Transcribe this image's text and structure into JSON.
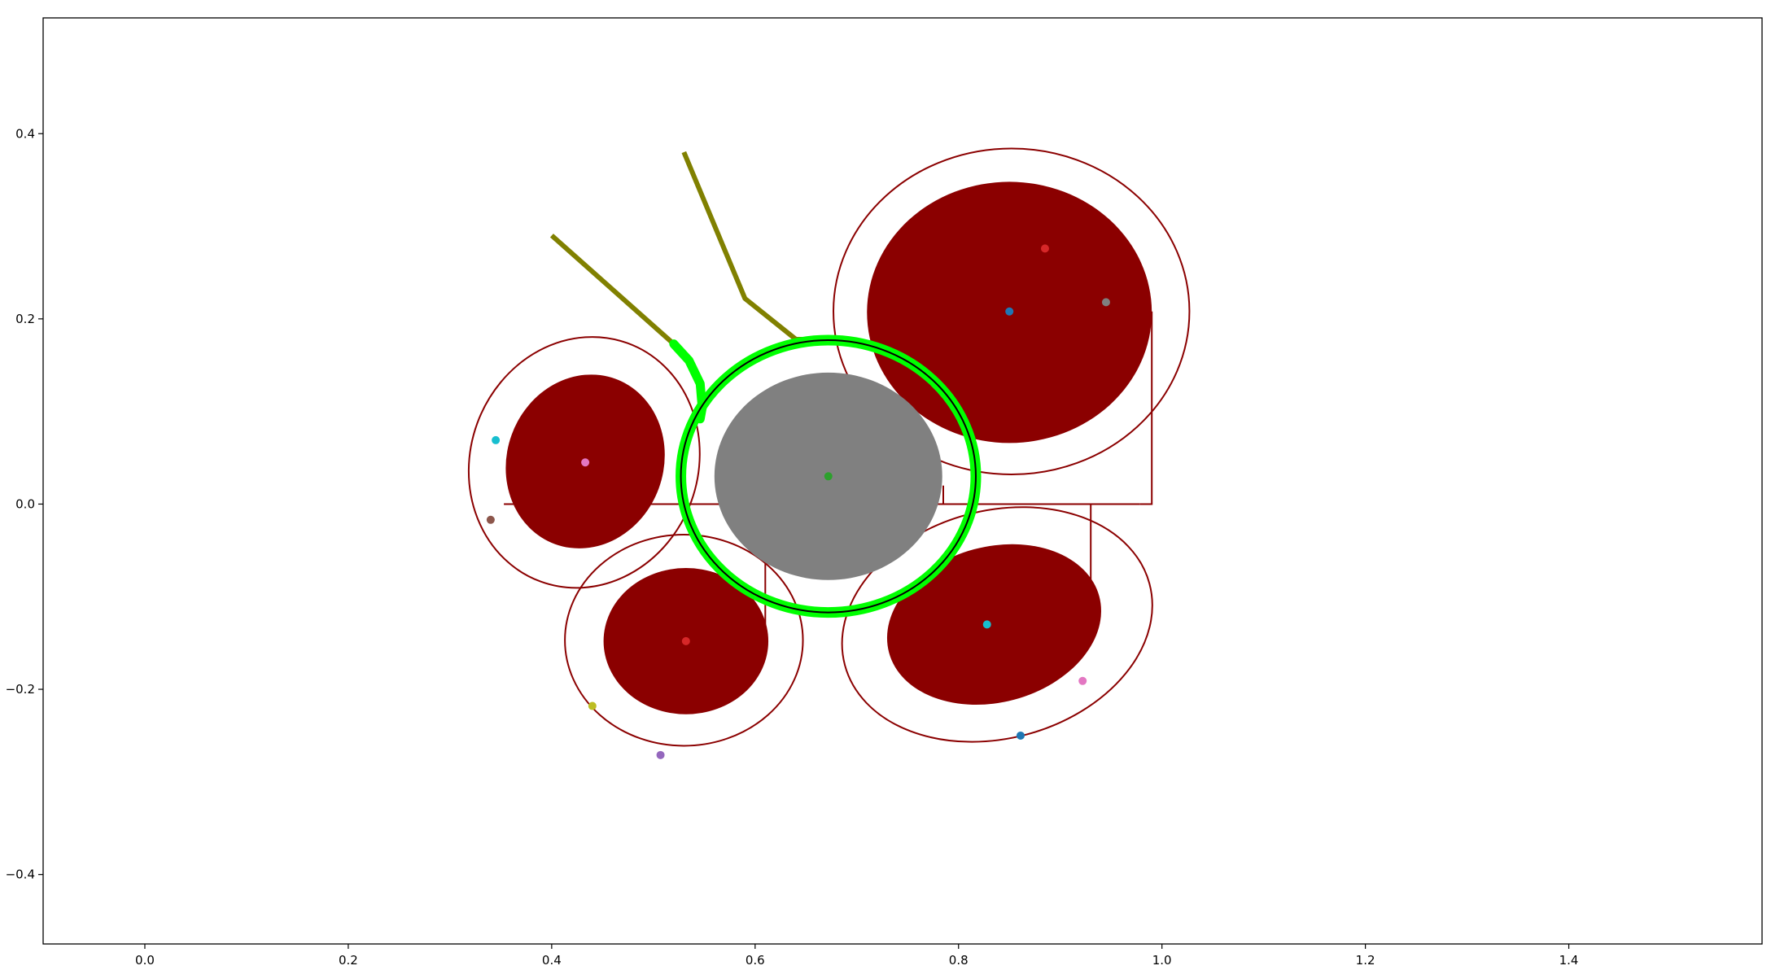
{
  "chart_data": {
    "type": "scatter",
    "title": "",
    "xlabel": "",
    "ylabel": "",
    "xlim": [
      -0.1,
      1.59
    ],
    "ylim": [
      -0.475,
      0.525
    ],
    "grid": false,
    "legend": "none",
    "x_ticks": [
      {
        "value": 0.0,
        "label": "0.0"
      },
      {
        "value": 0.2,
        "label": "0.2"
      },
      {
        "value": 0.4,
        "label": "0.4"
      },
      {
        "value": 0.6,
        "label": "0.6"
      },
      {
        "value": 0.8,
        "label": "0.8"
      },
      {
        "value": 1.0,
        "label": "1.0"
      },
      {
        "value": 1.2,
        "label": "1.2"
      },
      {
        "value": 1.4,
        "label": "1.4"
      }
    ],
    "y_ticks": [
      {
        "value": 0.4,
        "label": "0.4"
      },
      {
        "value": 0.2,
        "label": "0.2"
      },
      {
        "value": 0.0,
        "label": "0.0"
      },
      {
        "value": -0.2,
        "label": "−0.2"
      },
      {
        "value": -0.4,
        "label": "−0.4"
      }
    ],
    "colors": {
      "obstacle": "#8b0000",
      "center_object": "#808080",
      "highlight_ring": "#00ff00",
      "path": "#808000",
      "outline": "#000000"
    },
    "filled_ellipses": [
      {
        "name": "obstacle-top-right",
        "cx": 0.85,
        "cy": 0.207,
        "rx": 0.14,
        "ry": 0.141,
        "angle": 0,
        "color": "#8b0000"
      },
      {
        "name": "obstacle-left",
        "cx": 0.433,
        "cy": 0.046,
        "rx": 0.077,
        "ry": 0.095,
        "angle": -20,
        "color": "#8b0000"
      },
      {
        "name": "obstacle-bottom-left",
        "cx": 0.532,
        "cy": -0.148,
        "rx": 0.081,
        "ry": 0.079,
        "angle": 0,
        "color": "#8b0000"
      },
      {
        "name": "obstacle-bottom-right",
        "cx": 0.835,
        "cy": -0.13,
        "rx": 0.107,
        "ry": 0.084,
        "angle": 15,
        "color": "#8b0000"
      },
      {
        "name": "center-object",
        "cx": 0.672,
        "cy": 0.03,
        "rx": 0.112,
        "ry": 0.112,
        "angle": 0,
        "color": "#808080"
      }
    ],
    "outline_ellipses": [
      {
        "name": "halo-top-right",
        "cx": 0.852,
        "cy": 0.208,
        "rx": 0.175,
        "ry": 0.176,
        "angle": 0,
        "color": "#8b0000"
      },
      {
        "name": "halo-left",
        "cx": 0.432,
        "cy": 0.045,
        "rx": 0.112,
        "ry": 0.137,
        "angle": -20,
        "color": "#8b0000"
      },
      {
        "name": "halo-bottom-left",
        "cx": 0.53,
        "cy": -0.147,
        "rx": 0.117,
        "ry": 0.114,
        "angle": 0,
        "color": "#8b0000"
      },
      {
        "name": "halo-bottom-right",
        "cx": 0.838,
        "cy": -0.13,
        "rx": 0.155,
        "ry": 0.123,
        "angle": 15,
        "color": "#8b0000"
      }
    ],
    "base_lines": [
      {
        "name": "base-line-center",
        "points": [
          [
            0.353,
            0.0
          ],
          [
            0.978,
            0.0
          ]
        ],
        "color": "#8b0000"
      },
      {
        "name": "base-line-right",
        "points": [
          [
            0.978,
            0.0
          ],
          [
            0.99,
            0.0
          ],
          [
            0.99,
            0.208
          ]
        ],
        "color": "#8b0000"
      },
      {
        "name": "base-line-bottom-right",
        "points": [
          [
            0.93,
            0.0
          ],
          [
            0.93,
            -0.115
          ]
        ],
        "color": "#8b0000"
      },
      {
        "name": "base-line-bottom-left",
        "points": [
          [
            0.61,
            0.0
          ],
          [
            0.61,
            -0.148
          ]
        ],
        "color": "#8b0000"
      },
      {
        "name": "base-line-center-stub",
        "points": [
          [
            0.785,
            0.0
          ],
          [
            0.785,
            0.02
          ]
        ],
        "color": "#8b0000"
      }
    ],
    "green_ring": {
      "cx": 0.672,
      "cy": 0.03,
      "rx": 0.145,
      "ry": 0.147,
      "color": "#00ff00"
    },
    "black_circle": {
      "cx": 0.672,
      "cy": 0.03,
      "rx": 0.145,
      "ry": 0.147,
      "color": "#000000"
    },
    "paths": [
      {
        "name": "path-left",
        "points": [
          [
            0.4,
            0.29
          ],
          [
            0.52,
            0.173
          ]
        ],
        "color": "#808000"
      },
      {
        "name": "path-right",
        "points": [
          [
            0.53,
            0.38
          ],
          [
            0.59,
            0.222
          ],
          [
            0.64,
            0.178
          ],
          [
            0.68,
            0.177
          ]
        ],
        "color": "#808000"
      }
    ],
    "green_arc": {
      "points": [
        [
          0.52,
          0.173
        ],
        [
          0.535,
          0.155
        ],
        [
          0.546,
          0.13
        ],
        [
          0.548,
          0.104
        ],
        [
          0.546,
          0.092
        ]
      ],
      "color": "#00ff00"
    },
    "points": [
      {
        "name": "point-top-right-center",
        "x": 0.85,
        "y": 0.208,
        "color": "#1f77b4"
      },
      {
        "name": "point-top-right-red",
        "x": 0.885,
        "y": 0.276,
        "color": "#d62728"
      },
      {
        "name": "point-top-right-gray",
        "x": 0.945,
        "y": 0.218,
        "color": "#7f7f7f"
      },
      {
        "name": "point-left-center",
        "x": 0.433,
        "y": 0.045,
        "color": "#e377c2"
      },
      {
        "name": "point-left-cyan",
        "x": 0.345,
        "y": 0.069,
        "color": "#17becf"
      },
      {
        "name": "point-left-brown",
        "x": 0.34,
        "y": -0.017,
        "color": "#8c564b"
      },
      {
        "name": "point-center",
        "x": 0.672,
        "y": 0.03,
        "color": "#2ca02c"
      },
      {
        "name": "point-bottom-left-center",
        "x": 0.532,
        "y": -0.148,
        "color": "#d62728"
      },
      {
        "name": "point-bottom-left-olive",
        "x": 0.44,
        "y": -0.218,
        "color": "#bcbd22"
      },
      {
        "name": "point-bottom-left-purple",
        "x": 0.507,
        "y": -0.271,
        "color": "#9467bd"
      },
      {
        "name": "point-bottom-right-center",
        "x": 0.828,
        "y": -0.13,
        "color": "#17becf"
      },
      {
        "name": "point-bottom-right-pink",
        "x": 0.922,
        "y": -0.191,
        "color": "#e377c2"
      },
      {
        "name": "point-bottom-right-blue",
        "x": 0.861,
        "y": -0.25,
        "color": "#1f77b4"
      }
    ]
  }
}
